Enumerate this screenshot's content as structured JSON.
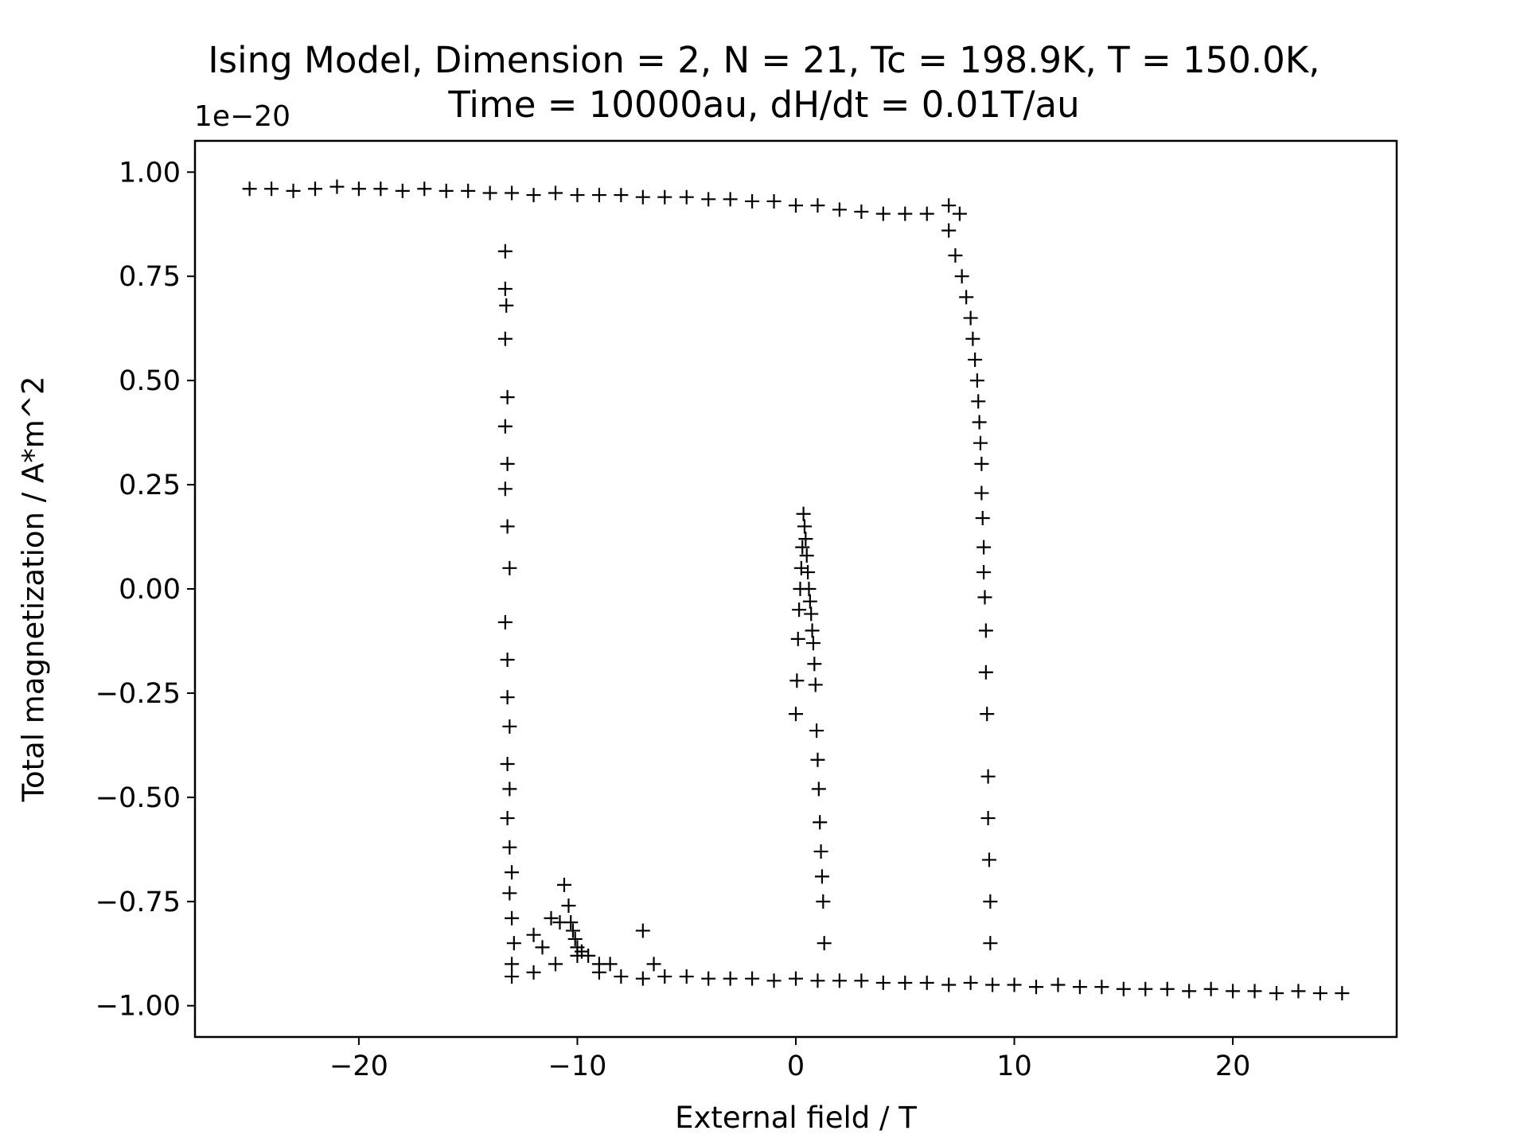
{
  "chart_data": {
    "type": "scatter",
    "title_lines": [
      "Ising Model, Dimension = 2, N = 21, Tc = 198.9K, T = 150.0K,",
      "Time = 10000au, dH/dt = 0.01T/au"
    ],
    "xlabel": "External field / T",
    "ylabel": "Total magnetization / A*m^2",
    "y_offset_label": "1e−20",
    "xlim": [
      -27.5,
      27.5
    ],
    "ylim": [
      -1.075,
      1.075
    ],
    "x_ticks": [
      -20,
      -10,
      0,
      10,
      20
    ],
    "x_tick_labels": [
      "−20",
      "−10",
      "0",
      "10",
      "20"
    ],
    "y_ticks": [
      1.0,
      0.75,
      0.5,
      0.25,
      0.0,
      -0.25,
      -0.5,
      -0.75,
      -1.0
    ],
    "y_tick_labels": [
      "1.00",
      "0.75",
      "0.50",
      "0.25",
      "0.00",
      "−0.25",
      "−0.50",
      "−0.75",
      "−1.00"
    ],
    "grid": false,
    "marker": "+",
    "marker_color": "#000000",
    "series": [
      {
        "segment": "upper branch (sweep -25 to 8)",
        "x": [
          -25,
          -24,
          -23,
          -22,
          -21,
          -20,
          -19,
          -18,
          -17,
          -16,
          -15,
          -14,
          -13,
          -12,
          -11,
          -10,
          -9,
          -8,
          -7,
          -6,
          -5,
          -4,
          -3,
          -2,
          -1,
          0,
          1,
          2,
          3,
          4,
          5,
          6,
          7,
          7.5
        ],
        "y": [
          0.96,
          0.96,
          0.955,
          0.96,
          0.965,
          0.96,
          0.96,
          0.955,
          0.96,
          0.955,
          0.955,
          0.95,
          0.95,
          0.945,
          0.95,
          0.945,
          0.945,
          0.945,
          0.94,
          0.94,
          0.94,
          0.935,
          0.935,
          0.93,
          0.93,
          0.92,
          0.92,
          0.91,
          0.905,
          0.9,
          0.9,
          0.9,
          0.92,
          0.9
        ]
      },
      {
        "segment": "switch near +8 T",
        "x": [
          7.0,
          7.3,
          7.6,
          7.8,
          8.0,
          8.1,
          8.2,
          8.3,
          8.35,
          8.4,
          8.45,
          8.5,
          8.5,
          8.55,
          8.6,
          8.6,
          8.65,
          8.7,
          8.7,
          8.75,
          8.8,
          8.8,
          8.85,
          8.9,
          8.9
        ],
        "y": [
          0.86,
          0.8,
          0.75,
          0.7,
          0.65,
          0.6,
          0.55,
          0.5,
          0.45,
          0.4,
          0.35,
          0.3,
          0.23,
          0.17,
          0.1,
          0.04,
          -0.02,
          -0.1,
          -0.2,
          -0.3,
          -0.45,
          -0.55,
          -0.65,
          -0.75,
          -0.85
        ]
      },
      {
        "segment": "lower branch (sweep 25 to -13)",
        "x": [
          25,
          24,
          23,
          22,
          21,
          20,
          19,
          18,
          17,
          16,
          15,
          14,
          13,
          12,
          11,
          10,
          9,
          8,
          7,
          6,
          5,
          4,
          3,
          2,
          1,
          0,
          -1,
          -2,
          -3,
          -4,
          -5,
          -6,
          -7,
          -8,
          -9,
          -10,
          -11,
          -12,
          -13
        ],
        "y": [
          -0.97,
          -0.97,
          -0.965,
          -0.97,
          -0.965,
          -0.965,
          -0.96,
          -0.965,
          -0.96,
          -0.96,
          -0.96,
          -0.955,
          -0.955,
          -0.95,
          -0.955,
          -0.95,
          -0.95,
          -0.945,
          -0.95,
          -0.945,
          -0.945,
          -0.945,
          -0.94,
          -0.94,
          -0.94,
          -0.935,
          -0.94,
          -0.935,
          -0.935,
          -0.935,
          -0.93,
          -0.93,
          -0.935,
          -0.93,
          -0.92,
          -0.88,
          -0.9,
          -0.92,
          -0.93
        ]
      },
      {
        "segment": "switch near -13 T",
        "x": [
          -13.3,
          -13.3,
          -13.25,
          -13.3,
          -13.2,
          -13.3,
          -13.2,
          -13.3,
          -13.2,
          -13.1,
          -13.3,
          -13.2,
          -13.2,
          -13.1,
          -13.2,
          -13.1,
          -13.2,
          -13.1,
          -13.0,
          -13.1,
          -13.0,
          -12.9,
          -13.0
        ],
        "y": [
          0.81,
          0.72,
          0.68,
          0.6,
          0.46,
          0.39,
          0.3,
          0.24,
          0.15,
          0.05,
          -0.08,
          -0.17,
          -0.26,
          -0.33,
          -0.42,
          -0.48,
          -0.55,
          -0.62,
          -0.68,
          -0.73,
          -0.79,
          -0.85,
          -0.9
        ]
      },
      {
        "segment": "feature near -10 T",
        "x": [
          -12,
          -11.6,
          -11.2,
          -10.8,
          -10.6,
          -10.4,
          -10.3,
          -10.2,
          -10.1,
          -10.0,
          -9.8,
          -9.5,
          -9.0,
          -8.5,
          -7,
          -6.5
        ],
        "y": [
          -0.83,
          -0.86,
          -0.79,
          -0.8,
          -0.71,
          -0.76,
          -0.8,
          -0.82,
          -0.84,
          -0.86,
          -0.87,
          -0.88,
          -0.9,
          -0.9,
          -0.82,
          -0.9
        ]
      },
      {
        "segment": "island near 0 T",
        "x": [
          0.0,
          0.05,
          0.1,
          0.15,
          0.2,
          0.25,
          0.3,
          0.35,
          0.4,
          0.45,
          0.5,
          0.55,
          0.6,
          0.65,
          0.7,
          0.75,
          0.8,
          0.85,
          0.9,
          0.95,
          1.0,
          1.05,
          1.1,
          1.15,
          1.2,
          1.25,
          1.3
        ],
        "y": [
          -0.3,
          -0.22,
          -0.12,
          -0.05,
          0.0,
          0.05,
          0.1,
          0.18,
          0.15,
          0.12,
          0.08,
          0.04,
          0.0,
          -0.03,
          -0.06,
          -0.1,
          -0.13,
          -0.18,
          -0.23,
          -0.34,
          -0.41,
          -0.48,
          -0.56,
          -0.63,
          -0.69,
          -0.75,
          -0.85
        ]
      }
    ]
  }
}
